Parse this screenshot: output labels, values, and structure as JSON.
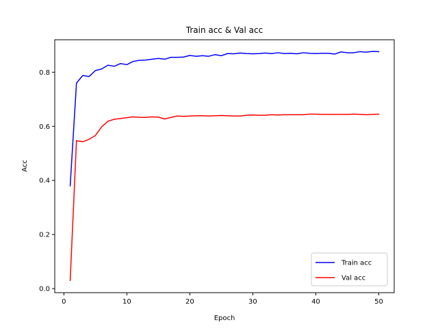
{
  "chart_data": {
    "type": "line",
    "title": "Train acc & Val acc",
    "xlabel": "Epoch",
    "ylabel": "Acc",
    "xlim": [
      -1.45,
      52.45
    ],
    "ylim": [
      -0.015,
      0.92
    ],
    "xticks": [
      "0",
      "10",
      "20",
      "30",
      "40",
      "50"
    ],
    "yticks": [
      "0.0",
      "0.2",
      "0.4",
      "0.6",
      "0.8"
    ],
    "grid": false,
    "legend_position": "lower-right",
    "x": [
      1,
      2,
      3,
      4,
      5,
      6,
      7,
      8,
      9,
      10,
      11,
      12,
      13,
      14,
      15,
      16,
      17,
      18,
      19,
      20,
      21,
      22,
      23,
      24,
      25,
      26,
      27,
      28,
      29,
      30,
      31,
      32,
      33,
      34,
      35,
      36,
      37,
      38,
      39,
      40,
      41,
      42,
      43,
      44,
      45,
      46,
      47,
      48,
      49,
      50
    ],
    "series": [
      {
        "name": "Train acc",
        "color": "#0000ff",
        "values": [
          0.38,
          0.76,
          0.788,
          0.784,
          0.806,
          0.812,
          0.826,
          0.822,
          0.832,
          0.828,
          0.84,
          0.844,
          0.845,
          0.848,
          0.851,
          0.848,
          0.855,
          0.855,
          0.856,
          0.862,
          0.859,
          0.861,
          0.859,
          0.865,
          0.861,
          0.869,
          0.868,
          0.871,
          0.869,
          0.868,
          0.869,
          0.871,
          0.869,
          0.872,
          0.869,
          0.87,
          0.868,
          0.872,
          0.87,
          0.869,
          0.87,
          0.87,
          0.867,
          0.875,
          0.872,
          0.872,
          0.876,
          0.874,
          0.877,
          0.876
        ]
      },
      {
        "name": "Val acc",
        "color": "#ff0000",
        "values": [
          0.03,
          0.547,
          0.543,
          0.552,
          0.566,
          0.598,
          0.619,
          0.626,
          0.629,
          0.632,
          0.635,
          0.633,
          0.633,
          0.635,
          0.634,
          0.627,
          0.633,
          0.638,
          0.637,
          0.638,
          0.639,
          0.639,
          0.638,
          0.639,
          0.64,
          0.639,
          0.638,
          0.638,
          0.641,
          0.642,
          0.641,
          0.641,
          0.643,
          0.642,
          0.643,
          0.643,
          0.643,
          0.643,
          0.645,
          0.645,
          0.644,
          0.644,
          0.644,
          0.644,
          0.644,
          0.645,
          0.644,
          0.643,
          0.644,
          0.645
        ]
      }
    ]
  }
}
